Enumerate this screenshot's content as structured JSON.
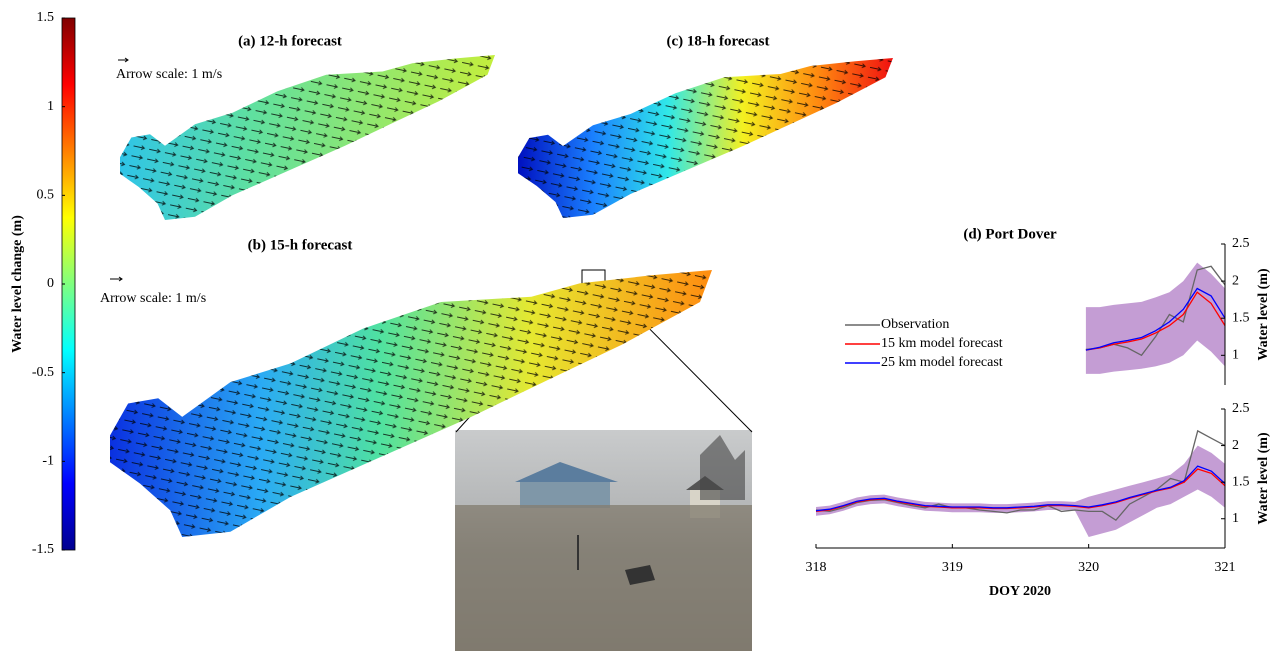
{
  "chart_data": [
    {
      "type": "colorbar",
      "colormap": "jet",
      "ylabel": "Water level change (m)",
      "ylim": [
        -1.5,
        1.5
      ],
      "yticks": [
        -1.5,
        -1,
        -0.5,
        0,
        0.5,
        1,
        1.5
      ]
    },
    {
      "type": "map",
      "title": "(a) 12-h forecast",
      "annotation": "Arrow scale: 1 m/s"
    },
    {
      "type": "map",
      "title": "(c) 18-h forecast"
    },
    {
      "type": "map",
      "title": "(b) 15-h forecast",
      "annotation": "Arrow scale: 1 m/s"
    },
    {
      "type": "line",
      "title": "(d) Port Dover",
      "ylabel": "Water level (m)",
      "xlim": [
        319.9,
        321
      ],
      "ylim": [
        0.6,
        2.5
      ],
      "yticks": [
        1,
        1.5,
        2,
        2.5
      ],
      "x": [
        320.0,
        320.1,
        320.2,
        320.3,
        320.4,
        320.5,
        320.6,
        320.7,
        320.8,
        320.9,
        321.0
      ],
      "band": {
        "color": "#b07cc6",
        "upper": [
          1.65,
          1.65,
          1.68,
          1.7,
          1.72,
          1.78,
          1.85,
          2.0,
          2.25,
          2.1,
          1.9
        ],
        "lower": [
          0.75,
          0.75,
          0.78,
          0.8,
          0.82,
          0.85,
          0.9,
          1.0,
          1.2,
          1.05,
          0.85
        ]
      },
      "series": [
        {
          "name": "Observation",
          "color": "#666666",
          "values": [
            1.08,
            1.1,
            1.15,
            1.1,
            1.0,
            1.25,
            1.55,
            1.45,
            2.15,
            2.2,
            1.95
          ]
        },
        {
          "name": "15 km model forecast",
          "color": "#ff0000",
          "values": [
            1.07,
            1.1,
            1.15,
            1.18,
            1.22,
            1.3,
            1.4,
            1.55,
            1.85,
            1.7,
            1.4
          ]
        },
        {
          "name": "25 km model forecast",
          "color": "#0000ff",
          "values": [
            1.07,
            1.11,
            1.17,
            1.2,
            1.24,
            1.33,
            1.45,
            1.62,
            1.9,
            1.8,
            1.5
          ]
        }
      ]
    },
    {
      "type": "line",
      "ylabel": "Water level (m)",
      "xlabel": "DOY 2020",
      "xlim": [
        318,
        321
      ],
      "xticks": [
        318,
        319,
        320,
        321
      ],
      "ylim": [
        0.6,
        2.5
      ],
      "yticks": [
        1,
        1.5,
        2,
        2.5
      ],
      "x": [
        318.0,
        318.1,
        318.2,
        318.3,
        318.4,
        318.5,
        318.6,
        318.7,
        318.8,
        318.9,
        319.0,
        319.1,
        319.2,
        319.3,
        319.4,
        319.5,
        319.6,
        319.7,
        319.8,
        319.9,
        320.0,
        320.1,
        320.2,
        320.3,
        320.4,
        320.5,
        320.6,
        320.7,
        320.8,
        320.9,
        321.0
      ],
      "band": {
        "color": "#b07cc6",
        "upper": [
          1.16,
          1.18,
          1.23,
          1.29,
          1.32,
          1.33,
          1.29,
          1.26,
          1.23,
          1.22,
          1.21,
          1.21,
          1.21,
          1.2,
          1.2,
          1.21,
          1.22,
          1.24,
          1.24,
          1.23,
          1.3,
          1.35,
          1.4,
          1.45,
          1.5,
          1.55,
          1.6,
          1.75,
          2.0,
          1.9,
          1.75
        ],
        "lower": [
          1.04,
          1.06,
          1.11,
          1.17,
          1.2,
          1.21,
          1.17,
          1.14,
          1.11,
          1.1,
          1.09,
          1.09,
          1.09,
          1.08,
          1.08,
          1.09,
          1.1,
          1.12,
          1.12,
          1.11,
          0.75,
          0.8,
          0.85,
          0.95,
          1.05,
          1.15,
          1.2,
          1.3,
          1.4,
          1.3,
          1.15
        ]
      },
      "series": [
        {
          "color": "#666666",
          "values": [
            1.12,
            1.1,
            1.15,
            1.22,
            1.25,
            1.26,
            1.22,
            1.18,
            1.15,
            1.2,
            1.15,
            1.15,
            1.12,
            1.1,
            1.08,
            1.12,
            1.12,
            1.18,
            1.1,
            1.12,
            1.1,
            1.1,
            0.98,
            1.2,
            1.3,
            1.4,
            1.55,
            1.5,
            2.2,
            2.1,
            2.0
          ]
        },
        {
          "color": "#ff0000",
          "values": [
            1.1,
            1.12,
            1.17,
            1.23,
            1.26,
            1.27,
            1.23,
            1.2,
            1.17,
            1.16,
            1.15,
            1.15,
            1.15,
            1.14,
            1.14,
            1.15,
            1.16,
            1.18,
            1.18,
            1.17,
            1.15,
            1.18,
            1.22,
            1.28,
            1.33,
            1.38,
            1.42,
            1.5,
            1.68,
            1.62,
            1.45
          ]
        },
        {
          "color": "#0000ff",
          "values": [
            1.11,
            1.13,
            1.18,
            1.24,
            1.27,
            1.28,
            1.24,
            1.21,
            1.18,
            1.17,
            1.16,
            1.16,
            1.16,
            1.15,
            1.15,
            1.16,
            1.17,
            1.19,
            1.19,
            1.18,
            1.16,
            1.19,
            1.23,
            1.29,
            1.34,
            1.39,
            1.43,
            1.52,
            1.72,
            1.65,
            1.48
          ]
        }
      ]
    }
  ]
}
